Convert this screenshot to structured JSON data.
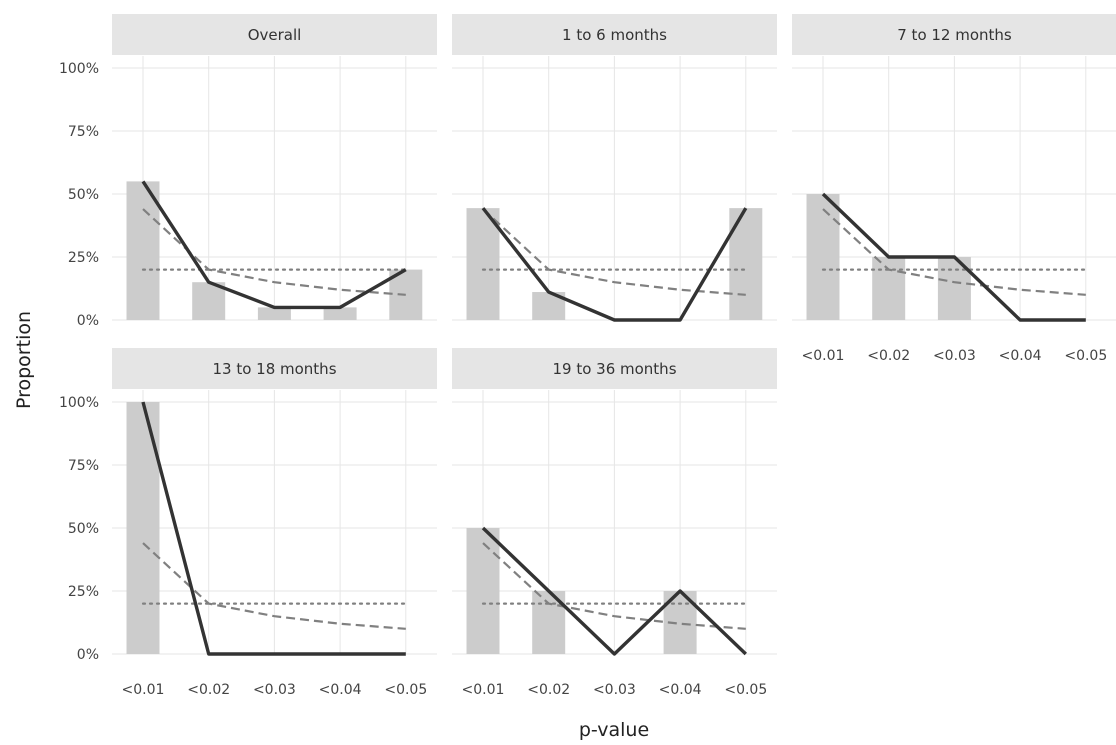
{
  "chart_data": {
    "type": "bar",
    "xlabel": "p-value",
    "ylabel": "Proportion",
    "categories": [
      "<0.01",
      "<0.02",
      "<0.03",
      "<0.04",
      "<0.05"
    ],
    "y_ticks": [
      "0%",
      "25%",
      "50%",
      "75%",
      "100%"
    ],
    "ylim": [
      0,
      1
    ],
    "grid": true,
    "layout": "facets in 2 rows x 3 columns",
    "colors": {
      "bars": "#cccccc",
      "observed_line": "#333333",
      "dashed_line": "#808080",
      "dotted_line": "#808080",
      "strip_background": "#e5e5e5",
      "grid": "#e6e6e6"
    },
    "reference_dashed": [
      0.44,
      0.2,
      0.15,
      0.12,
      0.1
    ],
    "reference_dotted": [
      0.2,
      0.2,
      0.2,
      0.2,
      0.2
    ],
    "facets": [
      {
        "title": "Overall",
        "bars": [
          0.55,
          0.15,
          0.05,
          0.05,
          0.2
        ],
        "line": [
          0.55,
          0.15,
          0.05,
          0.05,
          0.2
        ]
      },
      {
        "title": "1 to 6 months",
        "bars": [
          0.444,
          0.111,
          0.0,
          0.0,
          0.444
        ],
        "line": [
          0.444,
          0.111,
          0.0,
          0.0,
          0.444
        ]
      },
      {
        "title": "7 to 12 months",
        "bars": [
          0.5,
          0.25,
          0.25,
          0.0,
          0.0
        ],
        "line": [
          0.5,
          0.25,
          0.25,
          0.0,
          0.0
        ]
      },
      {
        "title": "13 to 18 months",
        "bars": [
          1.0,
          0.0,
          0.0,
          0.0,
          0.0
        ],
        "line": [
          1.0,
          0.0,
          0.0,
          0.0,
          0.0
        ]
      },
      {
        "title": "19 to 36 months",
        "bars": [
          0.5,
          0.25,
          0.0,
          0.25,
          0.0
        ],
        "line": [
          0.5,
          0.25,
          0.0,
          0.25,
          0.0
        ]
      }
    ]
  }
}
